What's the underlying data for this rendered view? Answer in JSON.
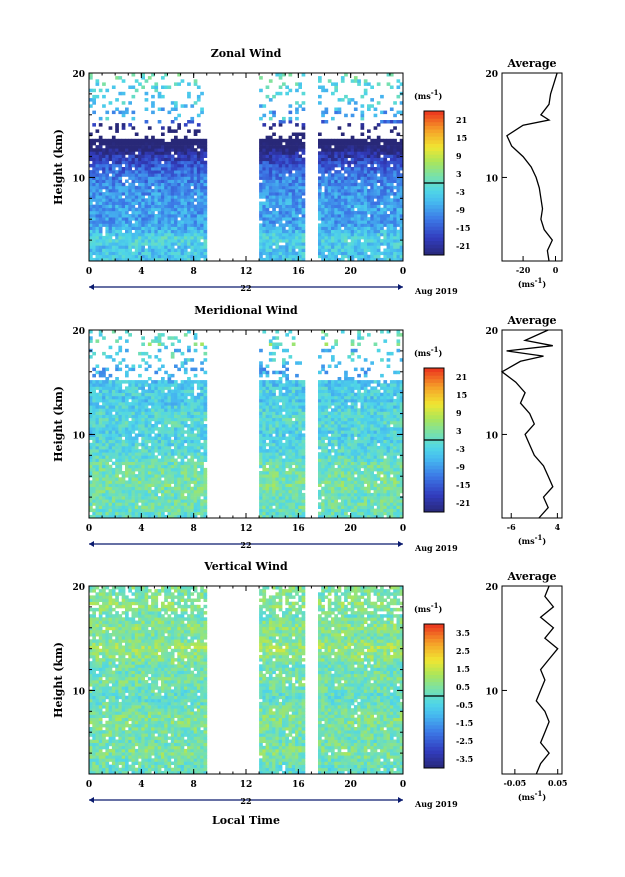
{
  "figure": {
    "x_axis_title": "Local Time",
    "date_label": "Aug 2019",
    "day_label": "22",
    "unit_label": "(ms",
    "unit_sup": "-1",
    "unit_close": ")",
    "average_title": "Average",
    "y_axis_title": "Height (km)"
  },
  "chart_data": [
    {
      "type": "heatmap",
      "title": "Zonal Wind",
      "ylabel": "Height (km)",
      "xlabel": "",
      "x_ticks": [
        "0",
        "4",
        "8",
        "12",
        "16",
        "20",
        "0"
      ],
      "y_ticks": [
        "20",
        "10"
      ],
      "xlim": [
        0,
        24
      ],
      "ylim": [
        2,
        20
      ],
      "missing_ranges": [
        [
          9,
          13
        ],
        [
          16.5,
          17.5
        ]
      ],
      "colorbar": {
        "min": -24,
        "max": 24,
        "ticks": [
          "21",
          "15",
          "9",
          "3",
          "-3",
          "-9",
          "-15",
          "-21"
        ]
      },
      "profile_heights": [
        2,
        3,
        4,
        5,
        6,
        7,
        8,
        9,
        10,
        11,
        12,
        13,
        14,
        15,
        15.5,
        16,
        17,
        18,
        19,
        20
      ],
      "profile_values": [
        -4,
        -5,
        -2,
        -7,
        -9,
        -8,
        -9,
        -10,
        -12,
        -15,
        -20,
        -27,
        -30,
        -20,
        -4,
        -9,
        -4,
        -3,
        -1,
        1
      ],
      "profile_xlim": [
        -33,
        4
      ],
      "profile_x_ticks": [
        "-20",
        "0"
      ],
      "profile_y_ticks": [
        "20",
        "10"
      ],
      "profile_xlabel": "(ms",
      "profile_xlabel_sup": "-1"
    },
    {
      "type": "heatmap",
      "title": "Meridional Wind",
      "ylabel": "Height (km)",
      "xlabel": "",
      "x_ticks": [
        "0",
        "4",
        "8",
        "12",
        "16",
        "20",
        "0"
      ],
      "y_ticks": [
        "20",
        "10"
      ],
      "xlim": [
        0,
        24
      ],
      "ylim": [
        2,
        20
      ],
      "missing_ranges": [
        [
          9,
          13
        ],
        [
          16.5,
          17.5
        ]
      ],
      "colorbar": {
        "min": -24,
        "max": 24,
        "ticks": [
          "21",
          "15",
          "9",
          "3",
          "-3",
          "-9",
          "-15",
          "-21"
        ]
      },
      "profile_heights": [
        2,
        3,
        4,
        5,
        6,
        7,
        8,
        9,
        10,
        11,
        12,
        13,
        14,
        15,
        16,
        17,
        17.5,
        18,
        18.5,
        19,
        20
      ],
      "profile_values": [
        0,
        2,
        1,
        3,
        2,
        1,
        -1,
        -2,
        -3,
        -1,
        -2,
        -4,
        -3,
        -5,
        -8,
        -4,
        1,
        -7,
        3,
        -3,
        2
      ],
      "profile_xlim": [
        -8,
        5
      ],
      "profile_x_ticks": [
        "-6",
        "4"
      ],
      "profile_y_ticks": [
        "20",
        "10"
      ],
      "profile_xlabel": "(ms",
      "profile_xlabel_sup": "-1"
    },
    {
      "type": "heatmap",
      "title": "Vertical Wind",
      "ylabel": "Height (km)",
      "xlabel": "Local Time",
      "x_ticks": [
        "0",
        "4",
        "8",
        "12",
        "16",
        "20",
        "0"
      ],
      "y_ticks": [
        "20",
        "10"
      ],
      "xlim": [
        0,
        24
      ],
      "ylim": [
        2,
        20
      ],
      "missing_ranges": [
        [
          9,
          13
        ],
        [
          16.5,
          17.5
        ]
      ],
      "colorbar": {
        "min": -4,
        "max": 4,
        "ticks": [
          "3.5",
          "2.5",
          "1.5",
          "0.5",
          "-0.5",
          "-1.5",
          "-2.5",
          "-3.5"
        ]
      },
      "profile_heights": [
        2,
        3,
        4,
        5,
        6,
        7,
        8,
        9,
        10,
        11,
        12,
        13,
        14,
        15,
        16,
        17,
        18,
        19,
        20
      ],
      "profile_values": [
        0.0,
        0.01,
        0.03,
        0.01,
        0.02,
        0.03,
        0.02,
        0.0,
        0.01,
        0.02,
        0.01,
        0.03,
        0.05,
        0.02,
        0.04,
        0.01,
        0.04,
        0.02,
        0.03
      ],
      "profile_xlim": [
        -0.08,
        0.06
      ],
      "profile_x_ticks": [
        "-0.05",
        "0.05"
      ],
      "profile_y_ticks": [
        "20",
        "10"
      ],
      "profile_xlabel": "(ms",
      "profile_xlabel_sup": "-1"
    }
  ]
}
